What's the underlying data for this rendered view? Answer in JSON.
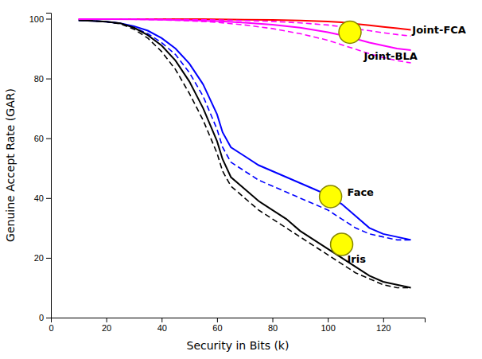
{
  "chart_data": {
    "type": "line",
    "x_label": "Security in Bits (k)",
    "y_label": "Genuine Accept Rate (GAR)",
    "xlim": [
      0,
      135
    ],
    "ylim": [
      0,
      102
    ],
    "xticks": [
      0,
      20,
      40,
      60,
      80,
      100,
      120
    ],
    "yticks": [
      0,
      20,
      40,
      60,
      80,
      100
    ],
    "series": [
      {
        "color": "#0000FF",
        "line_style": "solid",
        "x": [
          10,
          15,
          20,
          25,
          30,
          35,
          40,
          45,
          50,
          55,
          60,
          62,
          65,
          70,
          75,
          80,
          85,
          90,
          95,
          100,
          105,
          110,
          115,
          120,
          125,
          130
        ],
        "values": [
          99.5,
          99.3,
          99.0,
          98.5,
          97.5,
          96,
          93.5,
          90,
          85,
          78,
          68,
          62,
          57,
          54,
          51,
          49,
          47,
          45,
          43,
          41,
          38,
          34,
          30,
          28,
          27,
          26
        ]
      },
      {
        "color": "#0000FF",
        "line_style": "dashed",
        "x": [
          10,
          15,
          20,
          25,
          30,
          35,
          40,
          45,
          50,
          55,
          60,
          62,
          65,
          70,
          75,
          80,
          85,
          90,
          95,
          100,
          105,
          110,
          115,
          120,
          125,
          130
        ],
        "values": [
          99.5,
          99.3,
          99.0,
          98.5,
          97,
          95,
          92,
          88,
          82,
          74,
          63,
          57,
          52,
          49,
          46,
          44,
          42,
          40,
          38,
          36,
          33,
          30,
          28,
          27,
          26,
          26
        ]
      },
      {
        "color": "#000000",
        "line_style": "solid",
        "x": [
          10,
          15,
          20,
          25,
          30,
          35,
          40,
          45,
          50,
          55,
          60,
          62,
          65,
          70,
          75,
          80,
          85,
          90,
          95,
          100,
          105,
          110,
          115,
          120,
          125,
          130
        ],
        "values": [
          99.5,
          99.3,
          99.0,
          98.5,
          97,
          94.5,
          91,
          86,
          79,
          70,
          59,
          53,
          47,
          43,
          39,
          36,
          33,
          29,
          26,
          23,
          20,
          17,
          14,
          12,
          11,
          10
        ]
      },
      {
        "color": "#000000",
        "line_style": "dashed",
        "x": [
          10,
          15,
          20,
          25,
          30,
          35,
          40,
          45,
          50,
          55,
          60,
          62,
          65,
          70,
          75,
          80,
          85,
          90,
          95,
          100,
          105,
          110,
          115,
          120,
          125,
          130
        ],
        "values": [
          99.5,
          99.3,
          99.0,
          98.3,
          96.5,
          93.5,
          89,
          83,
          75,
          66,
          55,
          49,
          44,
          40,
          36,
          33,
          30,
          27,
          24,
          21,
          18,
          15,
          13,
          11,
          10,
          10
        ]
      },
      {
        "color": "#FF0000",
        "line_style": "solid",
        "x": [
          10,
          20,
          30,
          40,
          50,
          60,
          70,
          80,
          90,
          100,
          105,
          110,
          115,
          120,
          125,
          130
        ],
        "values": [
          99.9,
          99.9,
          99.9,
          99.9,
          99.9,
          99.8,
          99.7,
          99.6,
          99.4,
          99.1,
          98.8,
          98.3,
          97.8,
          97.3,
          96.8,
          96.3
        ]
      },
      {
        "color": "#FF00FF",
        "line_style": "dashed",
        "x": [
          10,
          20,
          30,
          40,
          50,
          60,
          70,
          80,
          90,
          100,
          105,
          110,
          115,
          120,
          125,
          130
        ],
        "values": [
          99.9,
          99.9,
          99.9,
          99.8,
          99.7,
          99.6,
          99.4,
          99.1,
          98.6,
          97.9,
          97.3,
          96.6,
          96.0,
          95.3,
          94.7,
          94.2
        ]
      },
      {
        "color": "#FF00FF",
        "line_style": "solid",
        "x": [
          10,
          20,
          30,
          40,
          50,
          60,
          70,
          80,
          90,
          100,
          105,
          110,
          115,
          120,
          125,
          130
        ],
        "values": [
          99.9,
          99.9,
          99.8,
          99.7,
          99.5,
          99.2,
          98.7,
          98.0,
          97.0,
          95.5,
          94.5,
          93.3,
          92.0,
          91.0,
          90.0,
          89.5
        ]
      },
      {
        "color": "#FF00FF",
        "line_style": "dashed",
        "x": [
          10,
          20,
          30,
          40,
          50,
          60,
          70,
          80,
          90,
          100,
          105,
          110,
          115,
          120,
          125,
          130
        ],
        "values": [
          99.9,
          99.9,
          99.8,
          99.6,
          99.3,
          98.8,
          97.9,
          96.7,
          95.0,
          92.8,
          91.3,
          89.8,
          88.3,
          87.0,
          86.0,
          85.2
        ]
      },
      {
        "type": "scatter",
        "marker": "circle",
        "color": "#FFFF00",
        "x": [
          108,
          101,
          105
        ],
        "values": [
          95.5,
          40.5,
          24.5
        ]
      }
    ],
    "annotations": [
      {
        "text": "Joint-FCA",
        "x": 130.5,
        "y": 96.3
      },
      {
        "text": "Joint-BLA",
        "x": 113.0,
        "y": 87.5
      },
      {
        "text": "Face",
        "x": 107.0,
        "y": 42.0
      },
      {
        "text": "Iris",
        "x": 107.0,
        "y": 19.5
      }
    ]
  }
}
